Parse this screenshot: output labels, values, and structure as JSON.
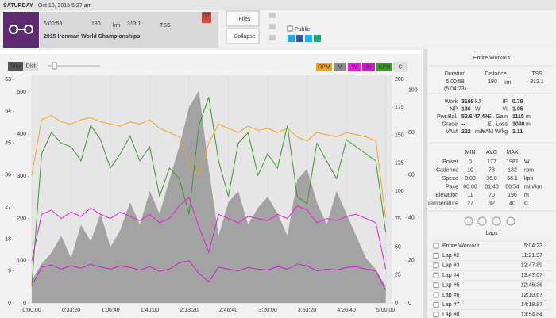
{
  "topbar": {
    "day": "SATURDAY",
    "date": "Oct 10, 2015",
    "time": "5:27 am"
  },
  "header": {
    "duration": "5:00:58",
    "distance": "180",
    "distance_unit": "km",
    "tss": "313.1",
    "tss_unit": "TSS",
    "title": "2015 Ironman World Championships",
    "badge": "GT",
    "buttons": [
      "Files",
      "Collapse"
    ],
    "public": "Public"
  },
  "toolbar": {
    "modes": [
      "Time",
      "Dist"
    ]
  },
  "chart_data": {
    "type": "line",
    "x": [
      0,
      500,
      1000,
      1500,
      2000,
      2500,
      3000,
      3500,
      4000,
      4500,
      5000,
      5500,
      6000,
      6500,
      7000,
      7500,
      8000,
      8500,
      9000,
      9500,
      10000,
      10500,
      11000,
      11500,
      12000,
      12500,
      13000,
      13500,
      14000,
      14500,
      15000,
      15500,
      16000,
      16500,
      17000,
      17500,
      18000
    ],
    "xlim": [
      0,
      18300
    ],
    "xticks": [
      {
        "value": 0,
        "label": "0:00:00"
      },
      {
        "value": 2000,
        "label": "0:33:20"
      },
      {
        "value": 4000,
        "label": "1:06:40"
      },
      {
        "value": 6000,
        "label": "1:40:00"
      },
      {
        "value": 8000,
        "label": "2:13:20"
      },
      {
        "value": 10000,
        "label": "2:46:40"
      },
      {
        "value": 12000,
        "label": "3:20:00"
      },
      {
        "value": 14000,
        "label": "3:53:20"
      },
      {
        "value": 16000,
        "label": "4:26:40"
      },
      {
        "value": 18000,
        "label": "5:00:00"
      }
    ],
    "ylim": [
      0,
      63
    ],
    "yticks": [
      0,
      9,
      18,
      27,
      36,
      45,
      54,
      63
    ],
    "y2lim": [
      0,
      530
    ],
    "y2ticks": [
      0,
      100,
      200,
      300,
      400,
      500
    ],
    "y3lim": [
      0,
      200
    ],
    "y3ticks": [
      0,
      25,
      50,
      75,
      100,
      125,
      150,
      175,
      200
    ],
    "y4lim": [
      0,
      105
    ],
    "y4ticks": [
      0,
      20,
      40,
      60,
      80,
      100
    ],
    "grid": true,
    "series": [
      {
        "name": "M",
        "color": "#8c8c8c",
        "axis": "y3",
        "fill": true,
        "values": [
          20,
          35,
          45,
          60,
          40,
          70,
          55,
          80,
          50,
          65,
          90,
          70,
          100,
          80,
          110,
          140,
          175,
          190,
          120,
          60,
          90,
          100,
          70,
          85,
          95,
          80,
          60,
          110,
          120,
          90,
          70,
          100,
          80,
          60,
          40,
          30,
          15
        ]
      },
      {
        "name": "RPM",
        "color": "#f0a52a",
        "axis": "y4",
        "values": [
          60,
          86,
          88,
          85,
          84,
          86,
          87,
          85,
          84,
          83,
          85,
          84,
          86,
          82,
          80,
          78,
          65,
          60,
          75,
          84,
          82,
          80,
          83,
          81,
          82,
          80,
          82,
          78,
          76,
          80,
          79,
          78,
          80,
          79,
          78,
          76,
          40
        ]
      },
      {
        "name": "W",
        "color": "#e51fe0",
        "axis": "y2",
        "values": [
          100,
          210,
          220,
          200,
          215,
          205,
          225,
          210,
          200,
          215,
          205,
          195,
          210,
          190,
          200,
          230,
          250,
          180,
          120,
          210,
          200,
          190,
          205,
          200,
          195,
          210,
          200,
          230,
          220,
          190,
          200,
          195,
          205,
          210,
          200,
          190,
          80
        ]
      },
      {
        "name": "W",
        "color": "#c81ec8",
        "axis": "y2",
        "values": [
          40,
          85,
          90,
          80,
          88,
          82,
          92,
          85,
          80,
          88,
          84,
          78,
          86,
          75,
          80,
          95,
          100,
          70,
          50,
          85,
          80,
          76,
          84,
          80,
          78,
          86,
          80,
          92,
          88,
          76,
          80,
          78,
          84,
          86,
          80,
          76,
          30
        ]
      },
      {
        "name": "KPH",
        "color": "#3c9a2c",
        "axis": "y",
        "values": [
          5,
          42,
          48,
          45,
          44,
          40,
          50,
          46,
          38,
          42,
          47,
          40,
          44,
          30,
          38,
          35,
          25,
          50,
          58,
          40,
          30,
          45,
          48,
          36,
          42,
          38,
          50,
          30,
          28,
          45,
          40,
          35,
          46,
          44,
          42,
          40,
          20
        ]
      }
    ],
    "axis_colors": {
      "y": "#3c9a2c",
      "y2": "#d21ed2",
      "y3": "#5a9fd0",
      "y4": "#e3a02a"
    },
    "legend_order": [
      1,
      0,
      2,
      3,
      4
    ],
    "inactive_legend": [
      "C"
    ]
  },
  "sidebar": {
    "title": "Entire Workout",
    "summary": [
      {
        "label": "Duration",
        "value": "5:00:58",
        "note": "(5:04:23)"
      },
      {
        "label": "Distance",
        "value": "180",
        "unit": "km"
      },
      {
        "label": "TSS",
        "value": "313.1"
      }
    ],
    "stats_left": [
      {
        "label": "Work",
        "value": "3198",
        "unit": "kJ"
      },
      {
        "label": "NP",
        "value": "186",
        "unit": "W"
      },
      {
        "label": "Pwr:Bal.",
        "value": "52.6/47.4%"
      },
      {
        "label": "Grade",
        "value": "--"
      },
      {
        "label": "VAM",
        "value": "222",
        "unit": "m/h"
      }
    ],
    "stats_right": [
      {
        "label": "IF",
        "value": "0.79"
      },
      {
        "label": "VI",
        "value": "1.05"
      },
      {
        "label": "El. Gain",
        "value": "1115",
        "unit": "m"
      },
      {
        "label": "El. Loss",
        "value": "1098",
        "unit": "m"
      },
      {
        "label": "VAM W/kg",
        "value": "1.11"
      }
    ],
    "table": {
      "columns": [
        "MIN",
        "AVG",
        "MAX"
      ],
      "rows": [
        {
          "label": "Power",
          "cells": [
            "0",
            "177",
            "1981"
          ],
          "unit": "W"
        },
        {
          "label": "Cadence",
          "cells": [
            "10",
            "73",
            "132"
          ],
          "unit": "rpm"
        },
        {
          "label": "Speed",
          "cells": [
            "0.00",
            "36.0",
            "66.1"
          ],
          "unit": "kph"
        },
        {
          "label": "Pace",
          "cells": [
            "00:00",
            "01:40",
            "00:54"
          ],
          "unit": "min/km"
        },
        {
          "label": "Elevation",
          "cells": [
            "11",
            "70",
            "196"
          ],
          "unit": "m"
        },
        {
          "label": "Temperature",
          "cells": [
            "27",
            "32",
            "40"
          ],
          "unit": "C"
        }
      ]
    },
    "laps_title": "Laps",
    "laps": [
      {
        "name": "Entire Workout",
        "time": "5:04:23"
      },
      {
        "name": "Lap #2",
        "time": "11:21.97"
      },
      {
        "name": "Lap #3",
        "time": "12:47.89"
      },
      {
        "name": "Lap #4",
        "time": "13:47.07"
      },
      {
        "name": "Lap #5",
        "time": "12:46.36"
      },
      {
        "name": "Lap #6",
        "time": "12:10.67"
      },
      {
        "name": "Lap #7",
        "time": "14:18.87"
      },
      {
        "name": "Lap #8",
        "time": "13:54.84"
      }
    ]
  }
}
